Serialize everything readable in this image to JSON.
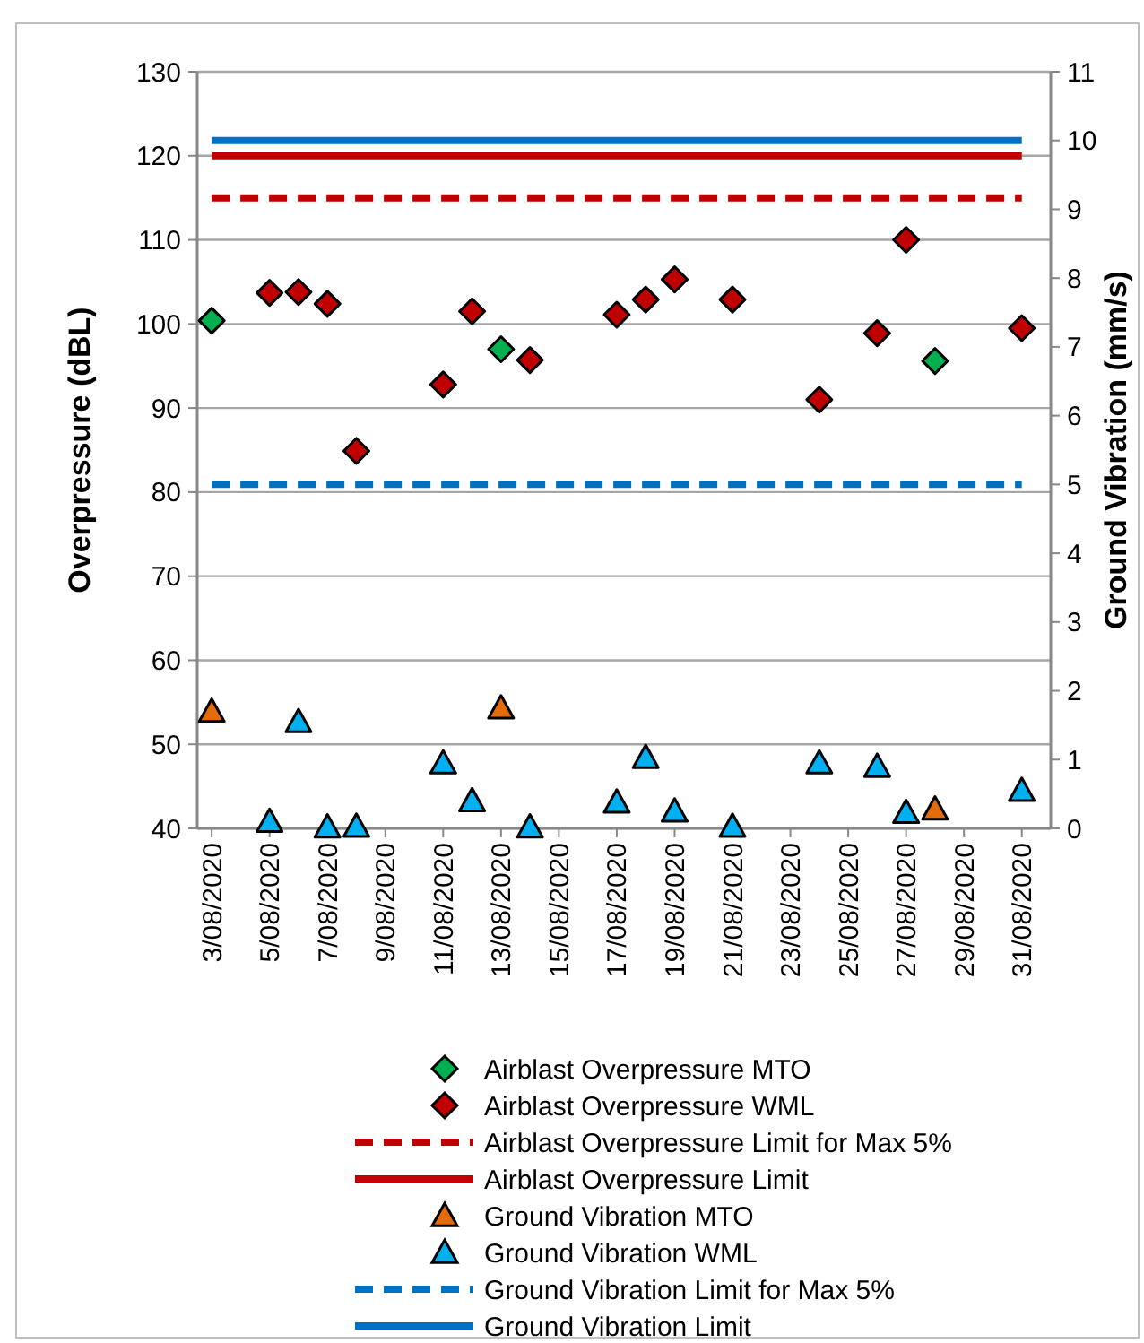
{
  "chart_data": {
    "type": "scatter",
    "ylabel": "Overpressure (dBL)",
    "y2label": "Ground Vibration (mm/s)",
    "xlim": [
      "2020-08-02T12:00",
      "2020-09-01"
    ],
    "xticks": [
      {
        "value": "2020-08-03",
        "label": "3/08/2020"
      },
      {
        "value": "2020-08-05",
        "label": "5/08/2020"
      },
      {
        "value": "2020-08-07",
        "label": "7/08/2020"
      },
      {
        "value": "2020-08-09",
        "label": "9/08/2020"
      },
      {
        "value": "2020-08-11",
        "label": "11/08/2020"
      },
      {
        "value": "2020-08-13",
        "label": "13/08/2020"
      },
      {
        "value": "2020-08-15",
        "label": "15/08/2020"
      },
      {
        "value": "2020-08-17",
        "label": "17/08/2020"
      },
      {
        "value": "2020-08-19",
        "label": "19/08/2020"
      },
      {
        "value": "2020-08-21",
        "label": "21/08/2020"
      },
      {
        "value": "2020-08-23",
        "label": "23/08/2020"
      },
      {
        "value": "2020-08-25",
        "label": "25/08/2020"
      },
      {
        "value": "2020-08-27",
        "label": "27/08/2020"
      },
      {
        "value": "2020-08-29",
        "label": "29/08/2020"
      },
      {
        "value": "2020-08-31",
        "label": "31/08/2020"
      }
    ],
    "ylim": [
      40,
      130
    ],
    "yticks": [
      40,
      50,
      60,
      70,
      80,
      90,
      100,
      110,
      120,
      130
    ],
    "y2lim": [
      0,
      11
    ],
    "y2ticks": [
      0,
      1,
      2,
      3,
      4,
      5,
      6,
      7,
      8,
      9,
      10,
      11
    ],
    "grid": "y",
    "legend": "bottom",
    "series": [
      {
        "name": "Airblast Overpressure MTO",
        "type": "scatter",
        "marker": "diamond",
        "color": "#00b050",
        "x": [
          "2020-08-03",
          "2020-08-13",
          "2020-08-28"
        ],
        "values": [
          100.4,
          97.0,
          95.6
        ]
      },
      {
        "name": "Airblast Overpressure WML",
        "type": "scatter",
        "marker": "diamond",
        "color": "#c00000",
        "x": [
          "2020-08-05",
          "2020-08-06",
          "2020-08-07",
          "2020-08-08",
          "2020-08-11",
          "2020-08-12",
          "2020-08-14",
          "2020-08-17",
          "2020-08-18",
          "2020-08-19",
          "2020-08-21",
          "2020-08-24",
          "2020-08-26",
          "2020-08-27",
          "2020-08-31"
        ],
        "values": [
          103.7,
          103.8,
          102.4,
          84.9,
          92.8,
          101.5,
          95.7,
          101.1,
          102.9,
          105.3,
          102.9,
          91.0,
          98.9,
          110.0,
          99.5
        ]
      },
      {
        "name": "Airblast Overpressure Limit for Max 5%",
        "type": "line",
        "line_style": "dashed",
        "color": "#c00000",
        "x": [
          "2020-08-03",
          "2020-08-31"
        ],
        "values": [
          115,
          115
        ]
      },
      {
        "name": "Airblast Overpressure Limit",
        "type": "line",
        "line_style": "solid",
        "color": "#c00000",
        "x": [
          "2020-08-03",
          "2020-08-31"
        ],
        "values": [
          120,
          120
        ]
      },
      {
        "name": "Ground Vibration MTO",
        "type": "scatter",
        "marker": "triangle",
        "axis": "y2",
        "color": "#e36c09",
        "x": [
          "2020-08-03",
          "2020-08-13",
          "2020-08-28"
        ],
        "values": [
          1.7,
          1.75,
          0.28
        ]
      },
      {
        "name": "Ground Vibration WML",
        "type": "scatter",
        "marker": "triangle",
        "axis": "y2",
        "color": "#00b0f0",
        "x": [
          "2020-08-05",
          "2020-08-06",
          "2020-08-07",
          "2020-08-08",
          "2020-08-11",
          "2020-08-12",
          "2020-08-14",
          "2020-08-17",
          "2020-08-18",
          "2020-08-19",
          "2020-08-21",
          "2020-08-24",
          "2020-08-26",
          "2020-08-27",
          "2020-08-31"
        ],
        "values": [
          0.1,
          1.55,
          0.02,
          0.03,
          0.95,
          0.4,
          0.02,
          0.38,
          1.03,
          0.25,
          0.03,
          0.95,
          0.9,
          0.23,
          0.55
        ]
      },
      {
        "name": "Ground Vibration Limit for Max 5%",
        "type": "line",
        "line_style": "dashed",
        "axis": "y2",
        "color": "#0070c0",
        "x": [
          "2020-08-03",
          "2020-08-31"
        ],
        "values": [
          5,
          5
        ]
      },
      {
        "name": "Ground Vibration Limit",
        "type": "line",
        "line_style": "solid",
        "axis": "y2",
        "color": "#0070c0",
        "x": [
          "2020-08-03",
          "2020-08-31"
        ],
        "values": [
          10,
          10
        ]
      }
    ]
  }
}
